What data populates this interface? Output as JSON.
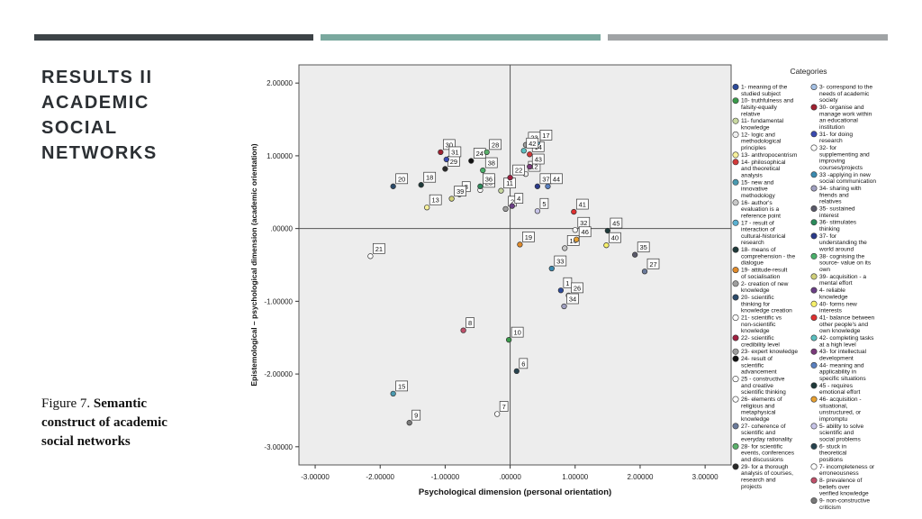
{
  "slide": {
    "title_lines": [
      "RESULTS II",
      "ACADEMIC",
      "SOCIAL",
      "NETWORKS"
    ],
    "caption_prefix": "Figure 7. ",
    "caption_bold": "Semantic construct of academic social networks"
  },
  "colors": {
    "bar1": "#3d4347",
    "bar2": "#7aa89e",
    "bar3": "#a0a3a5",
    "plot_bg": "#ededed"
  },
  "chart_data": {
    "type": "scatter",
    "xlabel": "Psychological dimension (personal orientation)",
    "ylabel": "Epistemological – psychological dimension (academic orientation)",
    "xlim": [
      -3.25,
      3.4
    ],
    "ylim": [
      -3.25,
      2.25
    ],
    "xticks": [
      -3,
      -2,
      -1,
      0,
      1,
      2,
      3
    ],
    "xtick_labels": [
      "-3.00000",
      "-2.00000",
      "-1.00000",
      ".00000",
      "1.00000",
      "2.00000",
      "3.00000"
    ],
    "yticks": [
      2,
      1,
      0,
      -1,
      -2,
      -3
    ],
    "ytick_labels": [
      "2.00000",
      "1.00000",
      ".00000",
      "-1.00000",
      "-2.00000",
      "-3.00000"
    ],
    "reference_lines": {
      "x": 0,
      "y": 0
    },
    "grid": false,
    "legend_title": "Categories",
    "legend_position": "right",
    "points": [
      {
        "id": "1",
        "x": 0.78,
        "y": -0.85,
        "color": "#2c4a9a",
        "label": "1- meaning of the studied subject"
      },
      {
        "id": "2",
        "x": -0.07,
        "y": 0.27,
        "color": "#9e9e9e",
        "label": "2- creation of new knowledge"
      },
      {
        "id": "3",
        "x": -0.78,
        "y": 0.47,
        "color": "#a4c0e4",
        "label": "3- correspond to the needs of academic society"
      },
      {
        "id": "4",
        "x": 0.03,
        "y": 0.31,
        "color": "#6b3f86",
        "label": "4- reliable knowledge"
      },
      {
        "id": "5",
        "x": 0.42,
        "y": 0.24,
        "color": "#c7c4e8",
        "label": "5- ability to solve scientific and social problems"
      },
      {
        "id": "6",
        "x": 0.1,
        "y": -1.96,
        "color": "#27434f",
        "label": "6- stuck in theoretical positions"
      },
      {
        "id": "7",
        "x": -0.2,
        "y": -2.55,
        "color": "#ffffff",
        "label": "7- incompleteness or erroneousness"
      },
      {
        "id": "8",
        "x": -0.72,
        "y": -1.4,
        "color": "#c0506a",
        "label": "8- prevalence of beliefs over verified knowledge"
      },
      {
        "id": "9",
        "x": -1.55,
        "y": -2.67,
        "color": "#7a7a7a",
        "label": "9- non-constructive criticism"
      },
      {
        "id": "10",
        "x": -0.02,
        "y": -1.53,
        "color": "#3a9a4a",
        "label": "10- truthfulness and falsity-equally relative"
      },
      {
        "id": "11",
        "x": -0.14,
        "y": 0.52,
        "color": "#c8d8a0",
        "label": "11- fundamental knowledge"
      },
      {
        "id": "12",
        "x": 0.24,
        "y": 0.75,
        "color": "#f0f0f0",
        "label": "12- logic and methodological principles"
      },
      {
        "id": "13",
        "x": -1.28,
        "y": 0.29,
        "color": "#f6f09a",
        "label": "13- anthropocentrism"
      },
      {
        "id": "14",
        "x": 0.3,
        "y": 1.02,
        "color": "#d23a3a",
        "label": "14- philosophical and theoretical analysis"
      },
      {
        "id": "15",
        "x": -1.8,
        "y": -2.27,
        "color": "#4a9ab0",
        "label": "15- new and innovative methodology"
      },
      {
        "id": "16",
        "x": 0.84,
        "y": -0.27,
        "color": "#c8c8c8",
        "label": "16- author's evaluation is a reference point"
      },
      {
        "id": "17",
        "x": 0.42,
        "y": 1.18,
        "color": "#5ab0d0",
        "label": "17 - result of interaction of cultural-historical research"
      },
      {
        "id": "18",
        "x": -1.37,
        "y": 0.6,
        "color": "#1e3a3a",
        "label": "18- means of comprehension - the dialogue"
      },
      {
        "id": "19",
        "x": 0.15,
        "y": -0.22,
        "color": "#e08a2a",
        "label": "19- attitude-result of socialisation"
      },
      {
        "id": "20",
        "x": -1.8,
        "y": 0.58,
        "color": "#2a4a6a",
        "label": "20- scientific thinking for knowledge creation"
      },
      {
        "id": "21",
        "x": -2.15,
        "y": -0.38,
        "color": "#ffffff",
        "label": "21- scientific vs non-scientific knowledge"
      },
      {
        "id": "22",
        "x": 0.0,
        "y": 0.7,
        "color": "#a02040",
        "label": "22- scientific credibility level"
      },
      {
        "id": "23",
        "x": 0.24,
        "y": 1.15,
        "color": "#9e9e9e",
        "label": "23- expert knowledge"
      },
      {
        "id": "24",
        "x": -0.6,
        "y": 0.93,
        "color": "#111111",
        "label": "24- result of scientific advancement"
      },
      {
        "id": "25",
        "x": -0.46,
        "y": 0.53,
        "color": "#ffffff",
        "label": "25 - constructive and creative scientific thinking"
      },
      {
        "id": "26",
        "x": 0.9,
        "y": -0.92,
        "color": "#ffffff",
        "label": "26- elements of religious and metaphysical knowledge"
      },
      {
        "id": "27",
        "x": 2.07,
        "y": -0.59,
        "color": "#6a7a9a",
        "label": "27- coherence of scientific and everyday rationality"
      },
      {
        "id": "28",
        "x": -0.36,
        "y": 1.05,
        "color": "#5ab06a",
        "label": "28- for scientific events, conferences and discussions"
      },
      {
        "id": "29",
        "x": -1.0,
        "y": 0.82,
        "color": "#2a2a2a",
        "label": "29- for a thorough analysis of courses, research and projects"
      },
      {
        "id": "30",
        "x": -1.07,
        "y": 1.05,
        "color": "#a02030",
        "label": "30- organise and manage work within an educational institution"
      },
      {
        "id": "31",
        "x": -0.98,
        "y": 0.95,
        "color": "#3a4ab0",
        "label": "31- for doing research"
      },
      {
        "id": "32",
        "x": 1.0,
        "y": -0.02,
        "color": "#ffffff",
        "label": "32- for supplementing and improving courses/projects"
      },
      {
        "id": "33",
        "x": 0.64,
        "y": -0.55,
        "color": "#3a8ab0",
        "label": "33 -applying in new social communication"
      },
      {
        "id": "34",
        "x": 0.83,
        "y": -1.07,
        "color": "#a0a0c0",
        "label": "34- sharing with friends and relatives"
      },
      {
        "id": "35",
        "x": 1.92,
        "y": -0.36,
        "color": "#5a5a6a",
        "label": "35- sustained interest"
      },
      {
        "id": "36",
        "x": -0.46,
        "y": 0.58,
        "color": "#2a8a5a",
        "label": "36- stimulates thinking"
      },
      {
        "id": "37",
        "x": 0.42,
        "y": 0.58,
        "color": "#2a3a8a",
        "label": "37- for understanding the world around"
      },
      {
        "id": "38",
        "x": -0.42,
        "y": 0.8,
        "color": "#4ab06a",
        "label": "38- cognising the source- value on its own"
      },
      {
        "id": "39",
        "x": -0.9,
        "y": 0.41,
        "color": "#d0d07a",
        "label": "39- acquisition - a mental effort"
      },
      {
        "id": "40",
        "x": 1.48,
        "y": -0.23,
        "color": "#f6f06a",
        "label": "40- forms new interests"
      },
      {
        "id": "41",
        "x": 0.98,
        "y": 0.23,
        "color": "#e03030",
        "label": "41- balance between other people's and own knowledge"
      },
      {
        "id": "42",
        "x": 0.21,
        "y": 1.07,
        "color": "#5ac0c0",
        "label": "42- completing tasks at a high level"
      },
      {
        "id": "43",
        "x": 0.3,
        "y": 0.85,
        "color": "#7a3a7a",
        "label": "43- for intellectual development"
      },
      {
        "id": "44",
        "x": 0.58,
        "y": 0.58,
        "color": "#5a80c0",
        "label": "44- meaning and applicability in specific situations"
      },
      {
        "id": "45",
        "x": 1.5,
        "y": -0.03,
        "color": "#1e3a3a",
        "label": "45 - requires emotional effort"
      },
      {
        "id": "46",
        "x": 1.02,
        "y": -0.15,
        "color": "#e8a030",
        "label": "46- acquisition - situational, unstructured, or impromptu"
      }
    ]
  }
}
